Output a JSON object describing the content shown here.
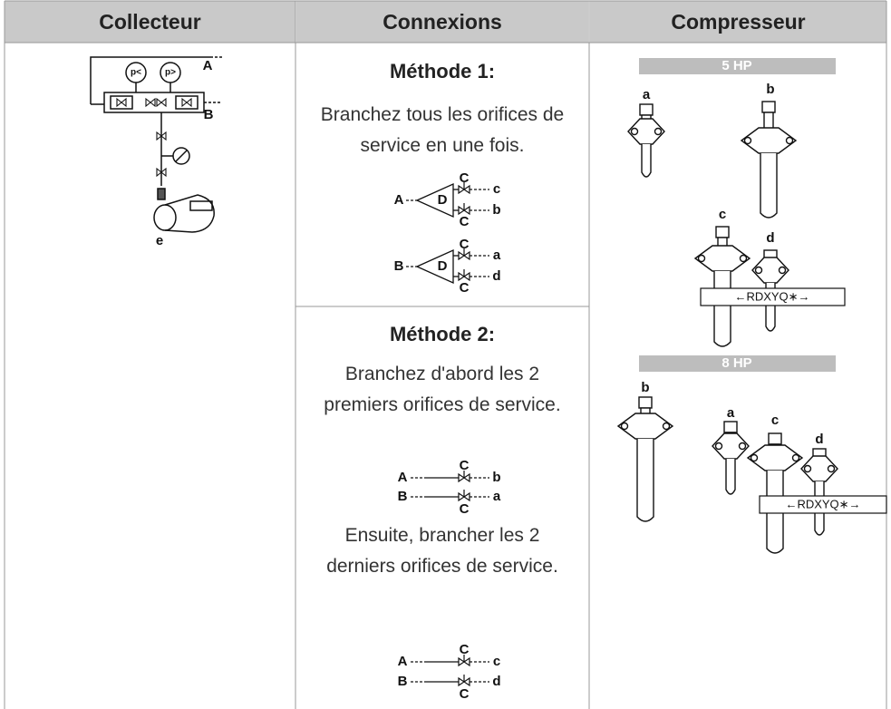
{
  "table": {
    "headers": [
      "Collecteur",
      "Connexions",
      "Compresseur"
    ],
    "manifold": {
      "gauges": [
        "p<",
        "p>"
      ],
      "ports": [
        "A",
        "B"
      ],
      "pump": "e"
    },
    "methods": [
      {
        "title": "Méthode 1:",
        "steps": [
          {
            "text": "Branchez tous les orifices de service en une fois.",
            "diagrams": [
              {
                "inlet": "A",
                "hub": "D",
                "branches": [
                  {
                    "valve": "C",
                    "port": "c"
                  },
                  {
                    "valve": "C",
                    "port": "b"
                  }
                ]
              },
              {
                "inlet": "B",
                "hub": "D",
                "branches": [
                  {
                    "valve": "C",
                    "port": "a"
                  },
                  {
                    "valve": "C",
                    "port": "d"
                  }
                ]
              }
            ]
          }
        ]
      },
      {
        "title": "Méthode 2:",
        "steps": [
          {
            "text": "Branchez d'abord les 2 premiers orifices de service.",
            "diagrams": [
              {
                "lines": [
                  {
                    "inlet": "A",
                    "valve": "C",
                    "port": "b"
                  },
                  {
                    "inlet": "B",
                    "valve": "C",
                    "port": "a"
                  }
                ]
              }
            ]
          },
          {
            "text": "Ensuite, brancher les 2 derniers orifices de service.",
            "diagrams": [
              {
                "lines": [
                  {
                    "inlet": "A",
                    "valve": "C",
                    "port": "c"
                  },
                  {
                    "inlet": "B",
                    "valve": "C",
                    "port": "d"
                  }
                ]
              }
            ]
          }
        ]
      }
    ],
    "compressor": [
      {
        "model": "5 HP",
        "valves": [
          "a",
          "b",
          "c",
          "d"
        ],
        "plate": "←RDXYQ∗→"
      },
      {
        "model": "8 HP",
        "valves": [
          "b",
          "a",
          "c",
          "d"
        ],
        "plate": "←RDXYQ∗→"
      }
    ]
  }
}
